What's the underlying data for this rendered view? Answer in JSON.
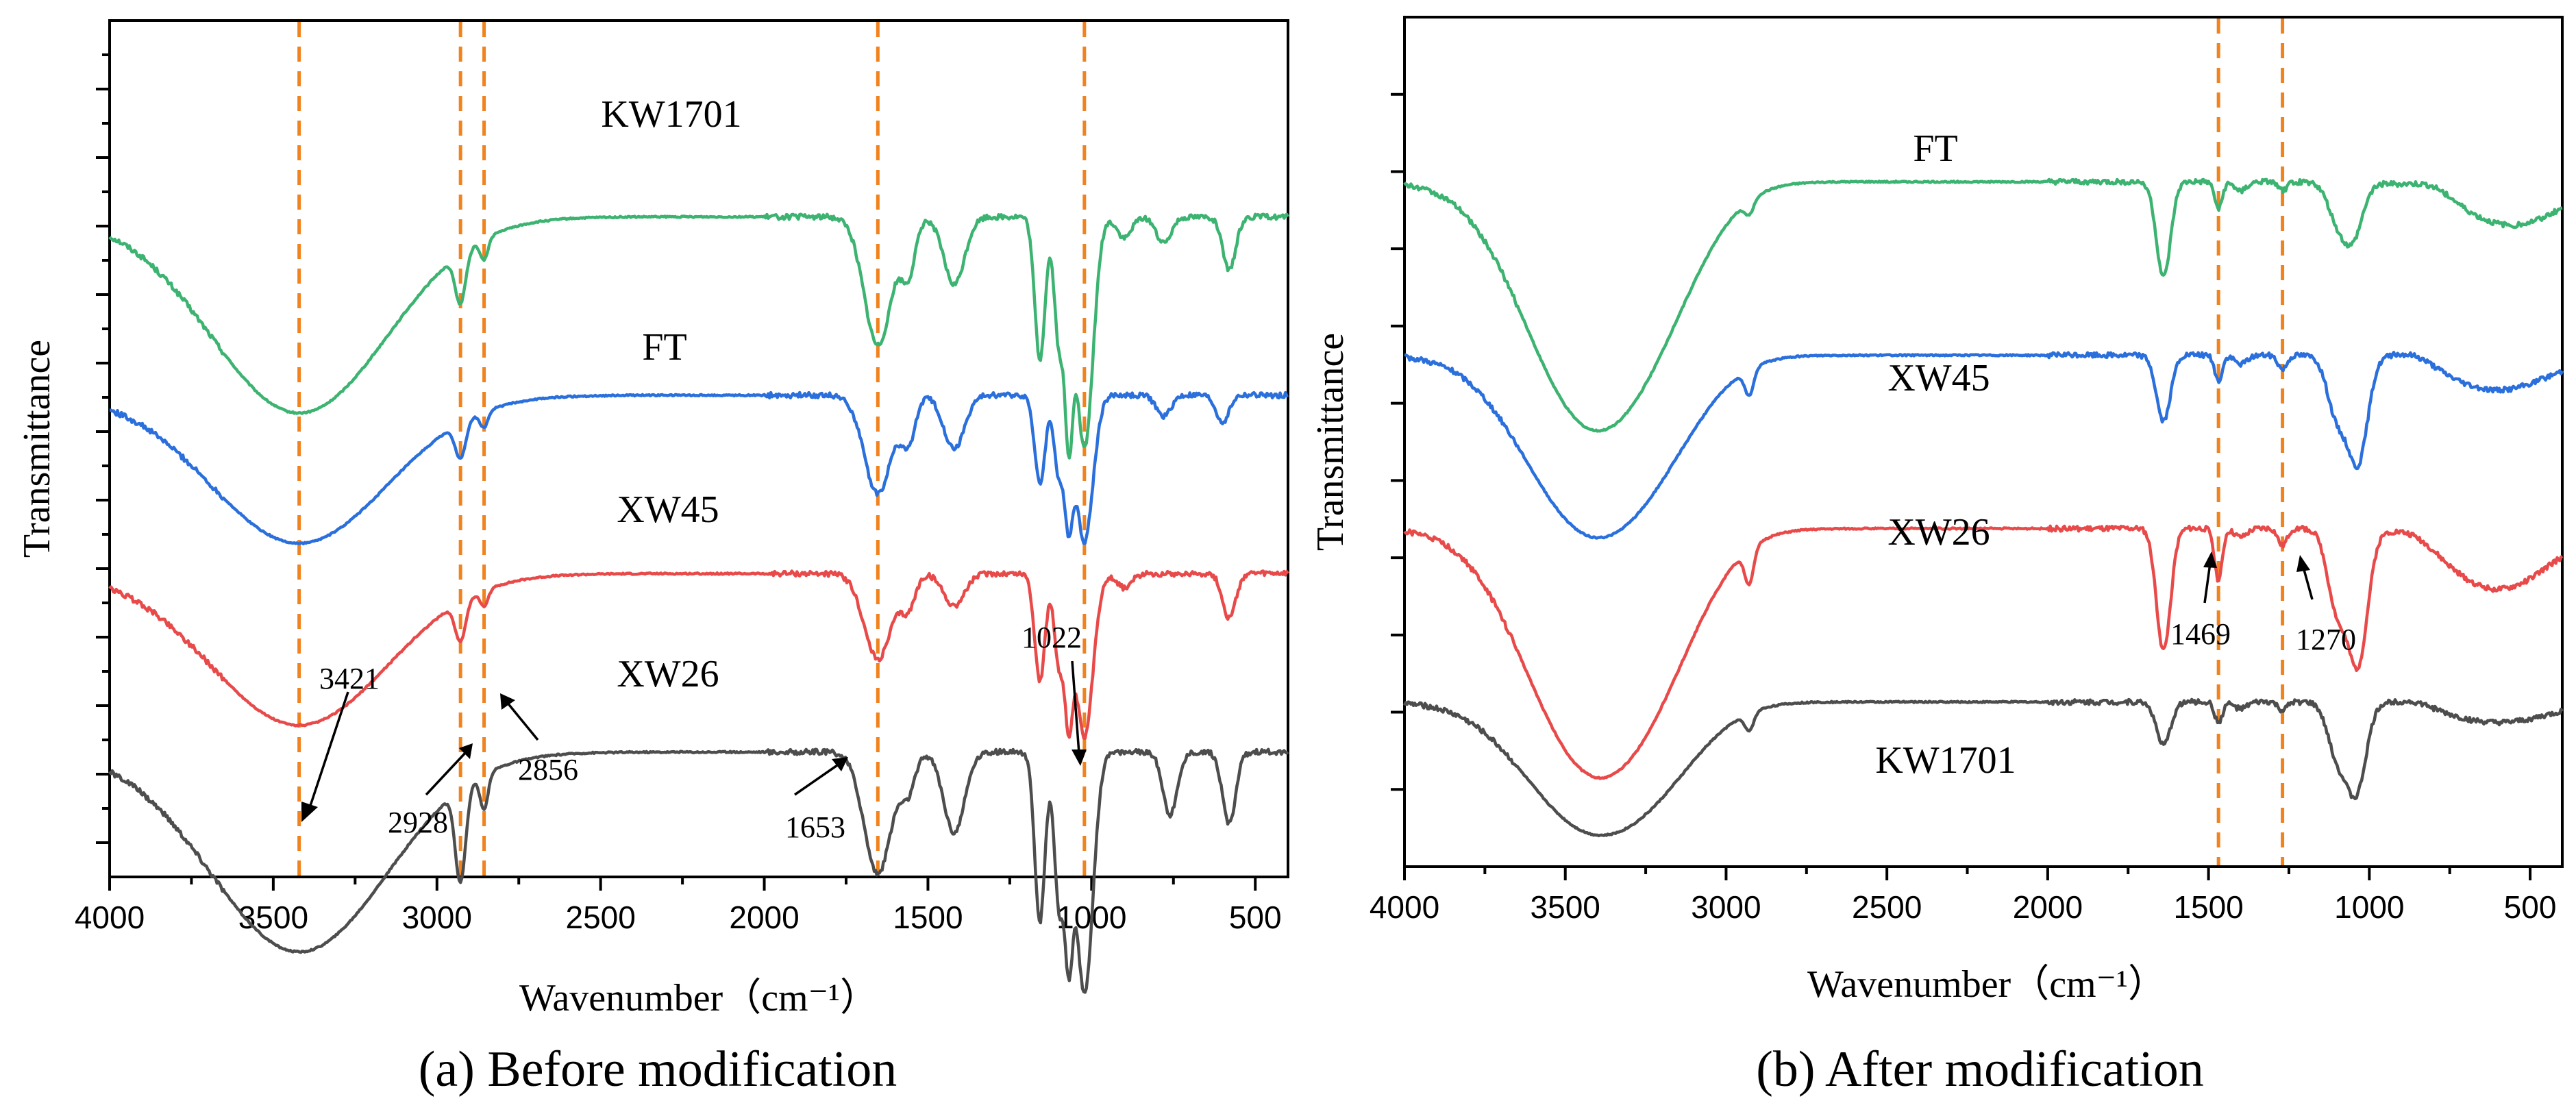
{
  "chart_data": [
    {
      "id": "a",
      "type": "line",
      "caption": "(a) Before modification",
      "xlabel": "Wavenumber（cm⁻¹）",
      "ylabel": "Transmittance",
      "xlim": [
        4000,
        400
      ],
      "x_ticks": [
        4000,
        3500,
        3000,
        2500,
        2000,
        1500,
        1000,
        500
      ],
      "reference_lines": [
        3421,
        2928,
        2856,
        1653,
        1022
      ],
      "series": [
        {
          "name": "KW1701",
          "color": "#3cb371",
          "baseline": 3.35,
          "features": [
            [
              3421,
              1.1,
              270
            ],
            [
              2928,
              0.28,
              16
            ],
            [
              2856,
              0.12,
              12
            ],
            [
              1653,
              0.72,
              42
            ],
            [
              1560,
              0.3,
              22
            ],
            [
              1420,
              0.38,
              32
            ],
            [
              1158,
              0.8,
              16
            ],
            [
              1100,
              0.7,
              14
            ],
            [
              1070,
              1.05,
              12
            ],
            [
              1022,
              1.3,
              26
            ],
            [
              900,
              0.12,
              22
            ],
            [
              780,
              0.15,
              22
            ],
            [
              580,
              0.3,
              20
            ]
          ]
        },
        {
          "name": "FT",
          "color": "#2a6fdb",
          "baseline": 2.35,
          "features": [
            [
              3421,
              0.83,
              270
            ],
            [
              2928,
              0.2,
              16
            ],
            [
              2856,
              0.09,
              12
            ],
            [
              1653,
              0.55,
              42
            ],
            [
              1560,
              0.25,
              22
            ],
            [
              1420,
              0.3,
              32
            ],
            [
              1158,
              0.5,
              16
            ],
            [
              1100,
              0.45,
              14
            ],
            [
              1070,
              0.6,
              12
            ],
            [
              1022,
              0.82,
              26
            ],
            [
              780,
              0.12,
              22
            ],
            [
              600,
              0.15,
              20
            ]
          ]
        },
        {
          "name": "XW45",
          "color": "#e84a4a",
          "baseline": 1.35,
          "features": [
            [
              3421,
              0.85,
              270
            ],
            [
              2928,
              0.22,
              16
            ],
            [
              2856,
              0.09,
              12
            ],
            [
              1653,
              0.48,
              42
            ],
            [
              1560,
              0.18,
              22
            ],
            [
              1420,
              0.18,
              32
            ],
            [
              1158,
              0.6,
              16
            ],
            [
              1100,
              0.5,
              14
            ],
            [
              1070,
              0.7,
              12
            ],
            [
              1022,
              0.92,
              26
            ],
            [
              900,
              0.08,
              22
            ],
            [
              580,
              0.25,
              20
            ]
          ]
        },
        {
          "name": "XW26",
          "color": "#4d4d4d",
          "baseline": 0.35,
          "features": [
            [
              3421,
              1.12,
              270
            ],
            [
              2928,
              0.52,
              16
            ],
            [
              2856,
              0.2,
              12
            ],
            [
              1653,
              0.68,
              42
            ],
            [
              1560,
              0.2,
              22
            ],
            [
              1420,
              0.45,
              32
            ],
            [
              1158,
              0.95,
              16
            ],
            [
              1100,
              0.85,
              14
            ],
            [
              1070,
              0.95,
              12
            ],
            [
              1022,
              1.35,
              26
            ],
            [
              760,
              0.35,
              22
            ],
            [
              580,
              0.4,
              20
            ]
          ]
        }
      ],
      "annotations": [
        "3421",
        "2928",
        "2856",
        "1653",
        "1022"
      ]
    },
    {
      "id": "b",
      "type": "line",
      "caption": "(b) After modification",
      "xlabel": "Wavenumber（cm⁻¹）",
      "ylabel": "Transmittance",
      "xlim": [
        4000,
        400
      ],
      "x_ticks": [
        4000,
        3500,
        3000,
        2500,
        2000,
        1500,
        1000,
        500
      ],
      "reference_lines": [
        1469,
        1270
      ],
      "series": [
        {
          "name": "FT",
          "color": "#3cb371",
          "baseline": 3.1,
          "features": [
            [
              3440,
              1.3,
              190
            ],
            [
              3200,
              0.4,
              150
            ],
            [
              2928,
              0.08,
              14
            ],
            [
              1640,
              0.55,
              22
            ],
            [
              1469,
              0.15,
              12
            ],
            [
              1400,
              0.05,
              20
            ],
            [
              1270,
              0.05,
              14
            ],
            [
              1100,
              0.2,
              30
            ],
            [
              1050,
              0.3,
              30
            ],
            [
              800,
              -0.05,
              60
            ],
            [
              560,
              0.25,
              160
            ]
          ]
        },
        {
          "name": "XW45",
          "color": "#2a6fdb",
          "baseline": 2.1,
          "features": [
            [
              3440,
              0.95,
              190
            ],
            [
              3200,
              0.3,
              150
            ],
            [
              2928,
              0.15,
              14
            ],
            [
              1640,
              0.38,
              22
            ],
            [
              1469,
              0.15,
              12
            ],
            [
              1400,
              0.05,
              20
            ],
            [
              1270,
              0.08,
              14
            ],
            [
              1100,
              0.35,
              30
            ],
            [
              1035,
              0.6,
              30
            ],
            [
              860,
              -0.05,
              60
            ],
            [
              600,
              0.2,
              160
            ]
          ]
        },
        {
          "name": "XW26",
          "color": "#e84a4a",
          "baseline": 1.1,
          "features": [
            [
              3440,
              1.28,
              190
            ],
            [
              3200,
              0.45,
              150
            ],
            [
              2928,
              0.2,
              14
            ],
            [
              1640,
              0.7,
              22
            ],
            [
              1469,
              0.3,
              12
            ],
            [
              1400,
              0.05,
              20
            ],
            [
              1270,
              0.1,
              14
            ],
            [
              1100,
              0.45,
              30
            ],
            [
              1035,
              0.75,
              30
            ],
            [
              860,
              -0.05,
              60
            ],
            [
              600,
              0.35,
              160
            ]
          ]
        },
        {
          "name": "KW1701",
          "color": "#4d4d4d",
          "baseline": 0.1,
          "features": [
            [
              3440,
              0.68,
              190
            ],
            [
              3200,
              0.25,
              150
            ],
            [
              2928,
              0.1,
              14
            ],
            [
              1640,
              0.25,
              22
            ],
            [
              1469,
              0.12,
              12
            ],
            [
              1400,
              0.04,
              20
            ],
            [
              1270,
              0.05,
              14
            ],
            [
              1100,
              0.3,
              30
            ],
            [
              1040,
              0.5,
              30
            ],
            [
              860,
              -0.03,
              60
            ],
            [
              600,
              0.12,
              160
            ]
          ]
        }
      ],
      "annotations": [
        "1469",
        "1270"
      ]
    }
  ]
}
